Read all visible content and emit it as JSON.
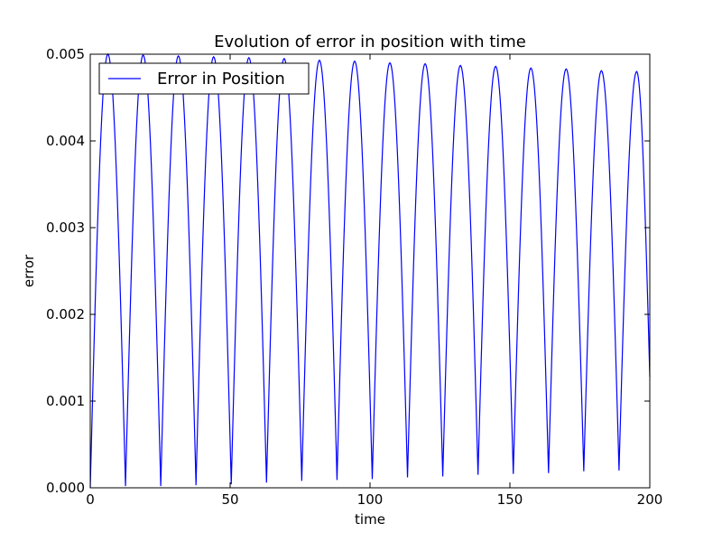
{
  "chart_data": {
    "type": "line",
    "title": "Evolution of error in position with time",
    "xlabel": "time",
    "ylabel": "error",
    "xlim": [
      0,
      200
    ],
    "ylim": [
      0,
      0.005
    ],
    "xticks": [
      "0",
      "50",
      "100",
      "150",
      "200"
    ],
    "yticks": [
      "0.000",
      "0.001",
      "0.002",
      "0.003",
      "0.004",
      "0.005"
    ],
    "grid": false,
    "legend_position": "top-left",
    "series": [
      {
        "name": "Error in Position",
        "color": "#0000ff",
        "x": [
          0,
          6.3,
          12.6,
          18.9,
          25.2,
          31.5,
          37.8,
          44.1,
          50.4,
          56.7,
          63.0,
          69.3,
          75.6,
          81.9,
          88.2,
          94.5,
          100.8,
          107.1,
          113.4,
          119.7,
          126.0,
          132.3,
          138.6,
          144.9,
          151.2,
          157.5,
          163.8,
          170.1,
          176.4,
          182.7,
          189.0,
          195.3,
          200
        ],
        "y": [
          0,
          0.005,
          2e-05,
          0.00499,
          2e-05,
          0.00498,
          3e-05,
          0.00497,
          4e-05,
          0.00496,
          6e-05,
          0.00495,
          8e-05,
          0.00493,
          9e-05,
          0.00492,
          0.0001,
          0.0049,
          0.00012,
          0.00489,
          0.00013,
          0.00487,
          0.00015,
          0.00486,
          0.00016,
          0.00484,
          0.00017,
          0.00483,
          0.00019,
          0.00481,
          0.0002,
          0.0048,
          0.00128
        ]
      }
    ]
  }
}
